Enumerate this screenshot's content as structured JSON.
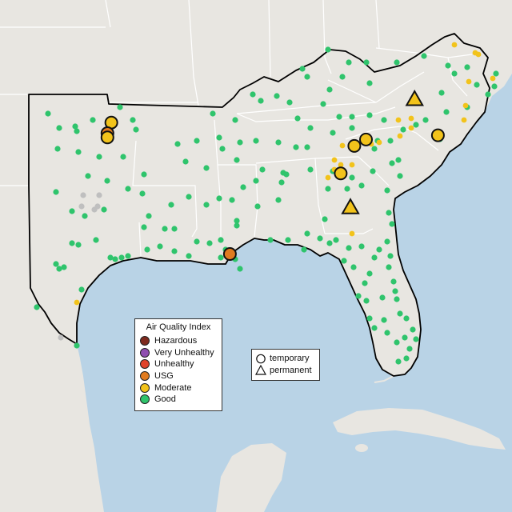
{
  "colors": {
    "water": "#b9d3e6",
    "land": "#e8e6e1",
    "land_relief": "#ddd8d0",
    "state_border": "#ffffff",
    "region_outline": "#000000"
  },
  "aqi_legend": {
    "title": "Air Quality Index",
    "categories": [
      {
        "label": "Hazardous",
        "color": "#7e2a1e"
      },
      {
        "label": "Very Unhealthy",
        "color": "#8f4fb0"
      },
      {
        "label": "Unhealthy",
        "color": "#e0432b"
      },
      {
        "label": "USG",
        "color": "#e07b20"
      },
      {
        "label": "Moderate",
        "color": "#f2c31b"
      },
      {
        "label": "Good",
        "color": "#2fc46c"
      }
    ],
    "no_data_color": "#bfbfbf"
  },
  "site_legend": {
    "items": [
      {
        "label": "temporary",
        "shape": "circle"
      },
      {
        "label": "permanent",
        "shape": "triangle"
      }
    ]
  },
  "monitors": [
    {
      "lon": -97.1,
      "lat": 36.7,
      "category": "Moderate",
      "type": "temporary"
    },
    {
      "lon": -97.3,
      "lat": 36.2,
      "category": "USG",
      "type": "temporary"
    },
    {
      "lon": -97.3,
      "lat": 36.0,
      "category": "Moderate",
      "type": "temporary"
    },
    {
      "lon": -84.6,
      "lat": 35.6,
      "category": "Moderate",
      "type": "temporary"
    },
    {
      "lon": -84.0,
      "lat": 35.9,
      "category": "Moderate",
      "type": "temporary"
    },
    {
      "lon": -85.3,
      "lat": 34.3,
      "category": "Moderate",
      "type": "temporary"
    },
    {
      "lon": -80.3,
      "lat": 36.1,
      "category": "Moderate",
      "type": "temporary"
    },
    {
      "lon": -91.0,
      "lat": 30.5,
      "category": "USG",
      "type": "temporary"
    },
    {
      "lon": -81.5,
      "lat": 37.8,
      "category": "Moderate",
      "type": "permanent"
    },
    {
      "lon": -84.8,
      "lat": 32.7,
      "category": "Moderate",
      "type": "permanent"
    }
  ]
}
